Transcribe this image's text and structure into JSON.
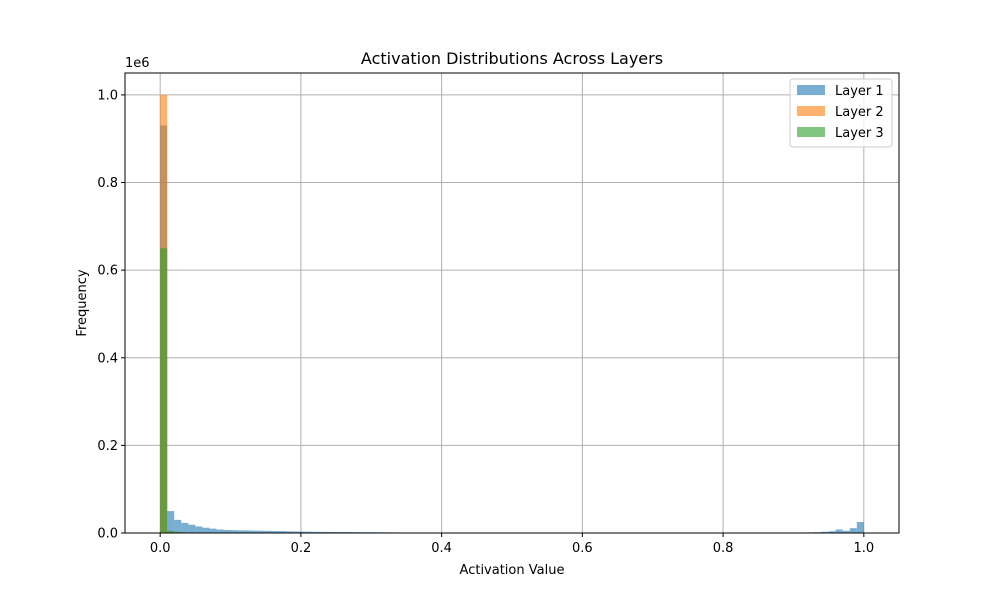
{
  "chart_data": {
    "type": "bar",
    "subtype": "histogram",
    "title": "Activation Distributions Across Layers",
    "xlabel": "Activation Value",
    "ylabel": "Frequency",
    "y_scale_label": "1e6",
    "xlim": [
      -0.05,
      1.05
    ],
    "ylim": [
      0,
      1050000
    ],
    "x_ticks": [
      {
        "value": 0.0,
        "label": "0.0"
      },
      {
        "value": 0.2,
        "label": "0.2"
      },
      {
        "value": 0.4,
        "label": "0.4"
      },
      {
        "value": 0.6,
        "label": "0.6"
      },
      {
        "value": 0.8,
        "label": "0.8"
      },
      {
        "value": 1.0,
        "label": "1.0"
      }
    ],
    "y_ticks": [
      {
        "value": 0,
        "label": "0.0"
      },
      {
        "value": 200000,
        "label": "0.2"
      },
      {
        "value": 400000,
        "label": "0.4"
      },
      {
        "value": 600000,
        "label": "0.6"
      },
      {
        "value": 800000,
        "label": "0.8"
      },
      {
        "value": 1000000,
        "label": "1.0"
      }
    ],
    "grid": true,
    "legend_position": "top-right",
    "opacity": 0.6,
    "bin_width": 0.01,
    "series": [
      {
        "name": "Layer 1",
        "color": "#1f77b4",
        "bins": [
          [
            0.0,
            930000
          ],
          [
            0.01,
            50000
          ],
          [
            0.02,
            30000
          ],
          [
            0.03,
            23000
          ],
          [
            0.04,
            19000
          ],
          [
            0.05,
            15000
          ],
          [
            0.06,
            12000
          ],
          [
            0.07,
            10000
          ],
          [
            0.08,
            8000
          ],
          [
            0.09,
            7000
          ],
          [
            0.1,
            6500
          ],
          [
            0.11,
            6000
          ],
          [
            0.12,
            5800
          ],
          [
            0.13,
            5500
          ],
          [
            0.14,
            5200
          ],
          [
            0.15,
            4800
          ],
          [
            0.16,
            4500
          ],
          [
            0.17,
            4200
          ],
          [
            0.18,
            3800
          ],
          [
            0.19,
            3400
          ],
          [
            0.2,
            3100
          ],
          [
            0.21,
            2900
          ],
          [
            0.22,
            2700
          ],
          [
            0.23,
            2500
          ],
          [
            0.24,
            2400
          ],
          [
            0.25,
            2200
          ],
          [
            0.26,
            2100
          ],
          [
            0.27,
            2000
          ],
          [
            0.28,
            1900
          ],
          [
            0.29,
            1800
          ],
          [
            0.3,
            1700
          ],
          [
            0.31,
            1600
          ],
          [
            0.32,
            1500
          ],
          [
            0.33,
            1400
          ],
          [
            0.34,
            1100
          ],
          [
            0.35,
            900
          ],
          [
            0.36,
            800
          ],
          [
            0.37,
            700
          ],
          [
            0.38,
            650
          ],
          [
            0.39,
            600
          ],
          [
            0.4,
            550
          ],
          [
            0.41,
            500
          ],
          [
            0.42,
            480
          ],
          [
            0.43,
            450
          ],
          [
            0.44,
            420
          ],
          [
            0.45,
            400
          ],
          [
            0.46,
            380
          ],
          [
            0.47,
            360
          ],
          [
            0.48,
            340
          ],
          [
            0.49,
            320
          ],
          [
            0.5,
            300
          ],
          [
            0.51,
            300
          ],
          [
            0.52,
            290
          ],
          [
            0.53,
            290
          ],
          [
            0.54,
            280
          ],
          [
            0.55,
            280
          ],
          [
            0.56,
            270
          ],
          [
            0.57,
            270
          ],
          [
            0.58,
            260
          ],
          [
            0.59,
            260
          ],
          [
            0.6,
            260
          ],
          [
            0.61,
            260
          ],
          [
            0.62,
            260
          ],
          [
            0.63,
            260
          ],
          [
            0.64,
            270
          ],
          [
            0.65,
            270
          ],
          [
            0.66,
            280
          ],
          [
            0.67,
            280
          ],
          [
            0.68,
            290
          ],
          [
            0.69,
            290
          ],
          [
            0.7,
            300
          ],
          [
            0.71,
            310
          ],
          [
            0.72,
            320
          ],
          [
            0.73,
            330
          ],
          [
            0.74,
            340
          ],
          [
            0.75,
            350
          ],
          [
            0.76,
            370
          ],
          [
            0.77,
            390
          ],
          [
            0.78,
            410
          ],
          [
            0.79,
            430
          ],
          [
            0.8,
            460
          ],
          [
            0.81,
            490
          ],
          [
            0.82,
            520
          ],
          [
            0.83,
            560
          ],
          [
            0.84,
            600
          ],
          [
            0.85,
            650
          ],
          [
            0.86,
            700
          ],
          [
            0.87,
            760
          ],
          [
            0.88,
            830
          ],
          [
            0.89,
            900
          ],
          [
            0.9,
            1000
          ],
          [
            0.91,
            1200
          ],
          [
            0.92,
            1500
          ],
          [
            0.93,
            2000
          ],
          [
            0.94,
            2800
          ],
          [
            0.95,
            4000
          ],
          [
            0.96,
            8000
          ],
          [
            0.97,
            5000
          ],
          [
            0.98,
            11000
          ],
          [
            0.99,
            25000
          ]
        ]
      },
      {
        "name": "Layer 2",
        "color": "#ff7f0e",
        "bins": [
          [
            0.0,
            1000000
          ],
          [
            0.01,
            2500
          ],
          [
            0.02,
            800
          ],
          [
            0.03,
            300
          ],
          [
            0.04,
            100
          ]
        ]
      },
      {
        "name": "Layer 3",
        "color": "#2ca02c",
        "bins": [
          [
            0.0,
            650000
          ],
          [
            0.01,
            5000
          ],
          [
            0.02,
            2500
          ],
          [
            0.03,
            1500
          ],
          [
            0.04,
            800
          ],
          [
            0.05,
            400
          ],
          [
            0.06,
            200
          ]
        ]
      }
    ]
  }
}
